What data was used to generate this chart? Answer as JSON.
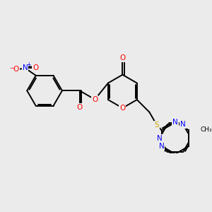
{
  "bg_color": "#ebebeb",
  "bond_color": "#000000",
  "atom_colors": {
    "O": "#ff0000",
    "N": "#0000ff",
    "S": "#ccaa00",
    "C": "#000000"
  }
}
